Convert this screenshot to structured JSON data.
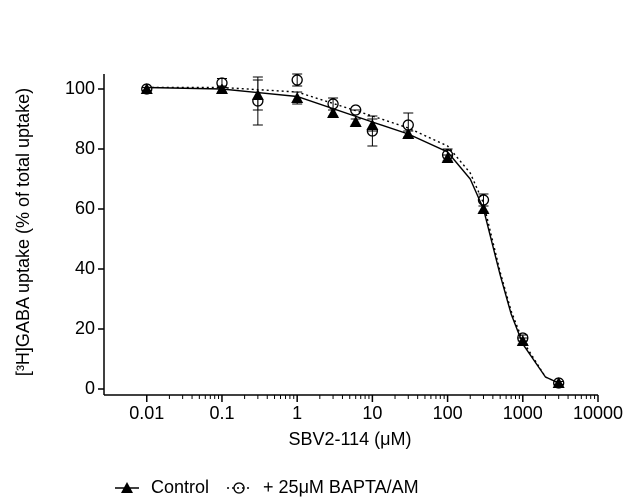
{
  "chart_data": {
    "type": "dose-response",
    "x_label": "SBV2-114 (μM)",
    "y_label": "[³H]GABA uptake (% of total uptake)",
    "x_scale": "log",
    "xlim": [
      0.0027,
      10000
    ],
    "xticks": [
      0.01,
      0.1,
      1,
      10,
      100,
      1000,
      10000
    ],
    "ylim": [
      -2,
      105
    ],
    "yticks": [
      0,
      20,
      40,
      60,
      80,
      100
    ],
    "legend": "bottom",
    "x": [
      0.01,
      0.1,
      0.3,
      1,
      3,
      6,
      10,
      30,
      100,
      300,
      1000,
      3000
    ],
    "series": [
      {
        "name": "Control",
        "color": "#000000",
        "marker": "triangle",
        "line_style": "solid",
        "values": [
          100,
          100,
          98,
          97,
          92,
          89,
          88,
          85,
          77,
          60,
          16,
          2
        ],
        "errors": [
          0.5,
          1,
          5,
          2,
          1,
          1,
          2,
          1,
          1,
          1,
          1,
          0.5
        ],
        "fit": {
          "x": [
            0.01,
            0.1,
            1,
            10,
            30,
            100,
            200,
            300,
            500,
            700,
            1000,
            2000,
            3000
          ],
          "values": [
            100.5,
            100,
            97.5,
            89,
            85,
            79,
            70,
            60,
            38,
            25,
            15,
            4,
            2
          ]
        }
      },
      {
        "name": "+ 25μM BAPTA/AM",
        "color": "#000000",
        "marker": "circle",
        "line_style": "dotted",
        "values": [
          100,
          102,
          96,
          103,
          95,
          93,
          86,
          88,
          78,
          63,
          17,
          2
        ],
        "errors": [
          0.5,
          1.5,
          8,
          2,
          2,
          0,
          5,
          4,
          2,
          2,
          1,
          0.5
        ],
        "fit": {
          "x": [
            0.01,
            0.1,
            1,
            10,
            30,
            100,
            200,
            300,
            500,
            700,
            1000,
            2000,
            3000
          ],
          "values": [
            100.5,
            100.5,
            99,
            91,
            87,
            81,
            72,
            62,
            39,
            26,
            16,
            4,
            2
          ]
        }
      }
    ]
  }
}
